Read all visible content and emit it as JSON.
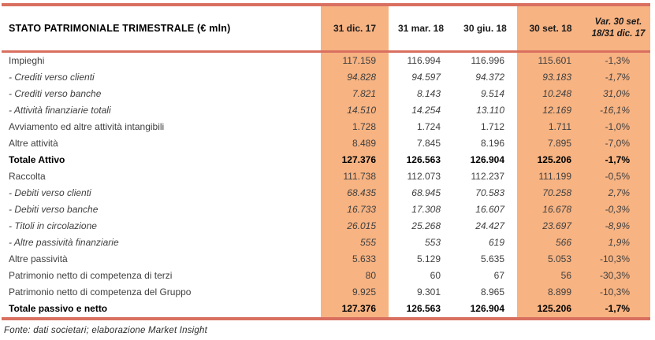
{
  "chart_data": {
    "type": "table",
    "title_cell": "STATO PATRIMONIALE TRIMESTRALE (€ mln)",
    "columns": [
      "31 dic. 17",
      "31 mar. 18",
      "30 giu. 18",
      "30 set. 18",
      "Var. 30 set. 18/31 dic. 17"
    ],
    "highlight_columns": [
      "31 dic. 17",
      "30 set. 18",
      "Var. 30 set. 18/31 dic. 17"
    ],
    "rows": [
      {
        "label": "Impieghi",
        "style": "normal",
        "values": [
          "117.159",
          "116.994",
          "116.996",
          "115.601",
          "-1,3%"
        ]
      },
      {
        "label": "- Crediti verso clienti",
        "style": "italic",
        "values": [
          "94.828",
          "94.597",
          "94.372",
          "93.183",
          "-1,7%"
        ]
      },
      {
        "label": "- Crediti verso banche",
        "style": "italic",
        "values": [
          "7.821",
          "8.143",
          "9.514",
          "10.248",
          "31,0%"
        ]
      },
      {
        "label": "- Attività finanziarie totali",
        "style": "italic",
        "values": [
          "14.510",
          "14.254",
          "13.110",
          "12.169",
          "-16,1%"
        ]
      },
      {
        "label": "Avviamento ed altre attività intangibili",
        "style": "normal",
        "values": [
          "1.728",
          "1.724",
          "1.712",
          "1.711",
          "-1,0%"
        ]
      },
      {
        "label": "Altre attività",
        "style": "normal",
        "values": [
          "8.489",
          "7.845",
          "8.196",
          "7.895",
          "-7,0%"
        ]
      },
      {
        "label": "Totale Attivo",
        "style": "bold",
        "values": [
          "127.376",
          "126.563",
          "126.904",
          "125.206",
          "-1,7%"
        ]
      },
      {
        "label": "Raccolta",
        "style": "normal",
        "values": [
          "111.738",
          "112.073",
          "112.237",
          "111.199",
          "-0,5%"
        ]
      },
      {
        "label": "- Debiti verso clienti",
        "style": "italic",
        "values": [
          "68.435",
          "68.945",
          "70.583",
          "70.258",
          "2,7%"
        ]
      },
      {
        "label": "- Debiti verso banche",
        "style": "italic",
        "values": [
          "16.733",
          "17.308",
          "16.607",
          "16.678",
          "-0,3%"
        ]
      },
      {
        "label": "- Titoli in circolazione",
        "style": "italic",
        "values": [
          "26.015",
          "25.268",
          "24.427",
          "23.697",
          "-8,9%"
        ]
      },
      {
        "label": "- Altre passività finanziarie",
        "style": "italic",
        "values": [
          "555",
          "553",
          "619",
          "566",
          "1,9%"
        ]
      },
      {
        "label": "Altre passività",
        "style": "normal",
        "values": [
          "5.633",
          "5.129",
          "5.635",
          "5.053",
          "-10,3%"
        ]
      },
      {
        "label": "Patrimonio netto di competenza di terzi",
        "style": "normal",
        "values": [
          "80",
          "60",
          "67",
          "56",
          "-30,3%"
        ]
      },
      {
        "label": "Patrimonio netto di competenza del Gruppo",
        "style": "normal",
        "values": [
          "9.925",
          "9.301",
          "8.965",
          "8.899",
          "-10,3%"
        ]
      },
      {
        "label": "Totale passivo e netto",
        "style": "bold",
        "values": [
          "127.376",
          "126.563",
          "126.904",
          "125.206",
          "-1,7%"
        ]
      }
    ],
    "source": "Fonte: dati societari; elaborazione Market Insight",
    "colors": {
      "highlight_fill": "#F7B382",
      "rule": "#D96F5F"
    }
  }
}
